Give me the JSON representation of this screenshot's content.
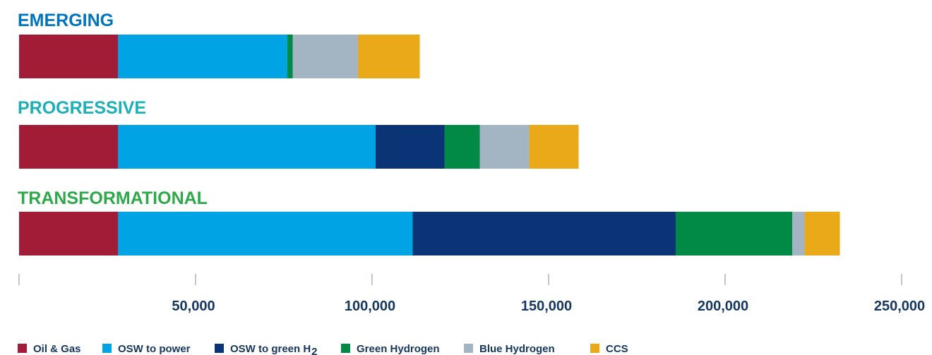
{
  "chart_data": {
    "type": "bar",
    "orientation": "horizontal",
    "stacked": true,
    "categories": [
      "EMERGING",
      "PROGRESSIVE",
      "TRANSFORMATIONAL"
    ],
    "category_colors": [
      "#0075be",
      "#1ab0b5",
      "#2ea84a"
    ],
    "series": [
      {
        "name": "Oil & Gas",
        "color": "#a31c37",
        "values": [
          28000,
          28000,
          28000
        ]
      },
      {
        "name": "OSW to power",
        "color": "#00a3e3",
        "values": [
          48000,
          73000,
          83500
        ]
      },
      {
        "name": "OSW to green H",
        "name_subscript": "2",
        "color": "#0a3476",
        "values": [
          0,
          19500,
          74500
        ]
      },
      {
        "name": "Green Hydrogen",
        "color": "#008a45",
        "values": [
          1500,
          10000,
          33000
        ]
      },
      {
        "name": "Blue Hydrogen",
        "color": "#a3b4c3",
        "values": [
          18500,
          14000,
          3500
        ]
      },
      {
        "name": "CCS",
        "color": "#eaa918",
        "values": [
          17500,
          14000,
          10000
        ]
      }
    ],
    "xlim": [
      0,
      250000
    ],
    "xticks": [
      50000,
      100000,
      150000,
      200000,
      250000
    ],
    "xtick_labels": [
      "50,000",
      "100,000",
      "150,000",
      "200,000",
      "250,000"
    ],
    "legend_position": "bottom",
    "grid": false
  }
}
